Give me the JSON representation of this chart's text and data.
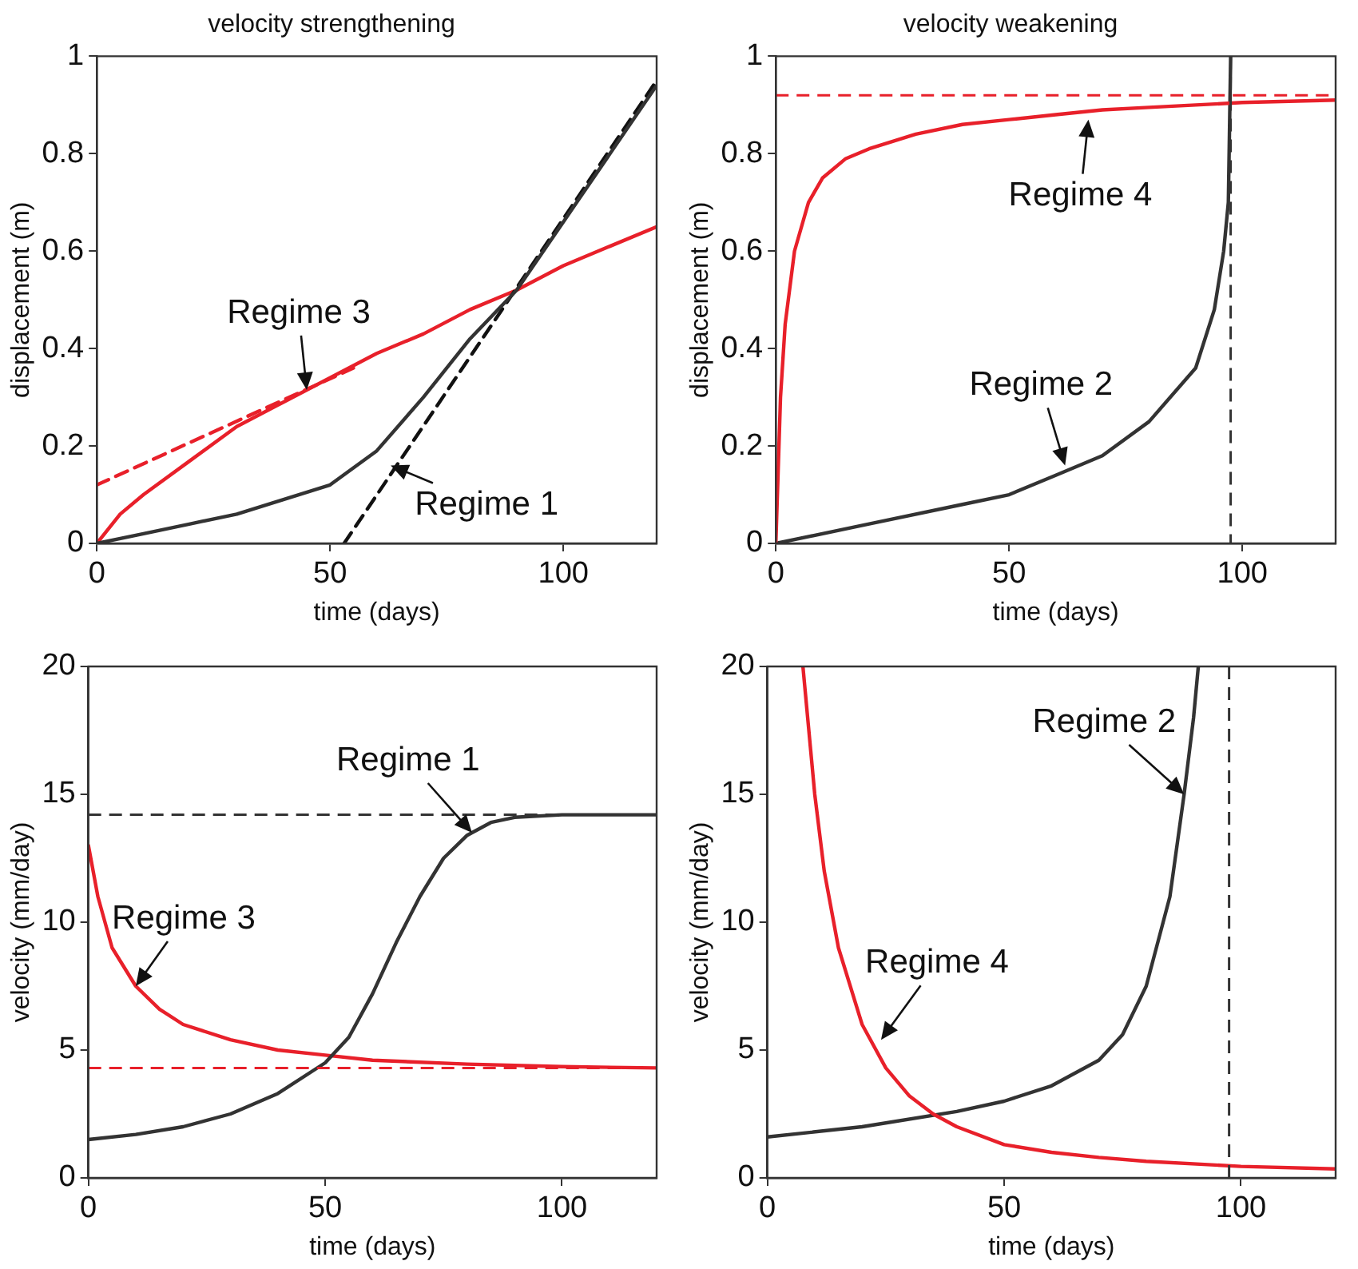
{
  "chart_data": [
    {
      "type": "line",
      "title": "velocity strengthening",
      "xlabel": "time (days)",
      "ylabel": "displacement (m)",
      "xlim": [
        0,
        120
      ],
      "xticks": [
        0,
        50,
        100
      ],
      "ylim": [
        0,
        1
      ],
      "yticks": [
        0,
        0.2,
        0.4,
        0.6,
        0.8,
        1
      ],
      "grid": false,
      "legend": false,
      "marker": "none",
      "series": [
        {
          "color": "#333333",
          "line_style": "solid",
          "x": [
            0,
            10,
            20,
            30,
            40,
            50,
            60,
            70,
            80,
            90,
            100,
            110,
            120
          ],
          "values": [
            0,
            0.02,
            0.04,
            0.06,
            0.09,
            0.12,
            0.19,
            0.3,
            0.42,
            0.52,
            0.66,
            0.8,
            0.94
          ]
        },
        {
          "color": "#111111",
          "line_style": "dashed",
          "x": [
            53,
            120
          ],
          "values": [
            0,
            0.95
          ]
        },
        {
          "color": "#e8202a",
          "line_style": "solid",
          "x": [
            0,
            5,
            10,
            20,
            30,
            40,
            50,
            60,
            70,
            80,
            90,
            100,
            110,
            120
          ],
          "values": [
            0,
            0.06,
            0.1,
            0.17,
            0.24,
            0.29,
            0.34,
            0.39,
            0.43,
            0.48,
            0.52,
            0.57,
            0.61,
            0.65
          ]
        },
        {
          "color": "#e8202a",
          "line_style": "dashed",
          "x": [
            0,
            55
          ],
          "values": [
            0.12,
            0.36
          ]
        }
      ],
      "annotations": [
        {
          "text": "Regime 3",
          "x": 45,
          "y": 0.315
        },
        {
          "text": "Regime 1",
          "x": 63,
          "y": 0.16
        }
      ]
    },
    {
      "type": "line",
      "title": "velocity weakening",
      "xlabel": "time (days)",
      "ylabel": "displacement (m)",
      "xlim": [
        0,
        120
      ],
      "xticks": [
        0,
        50,
        100
      ],
      "ylim": [
        0,
        1
      ],
      "yticks": [
        0,
        0.2,
        0.4,
        0.6,
        0.8,
        1
      ],
      "grid": false,
      "legend": false,
      "marker": "none",
      "series": [
        {
          "color": "#e8202a",
          "line_style": "solid",
          "x": [
            0,
            1,
            2,
            4,
            7,
            10,
            15,
            20,
            30,
            40,
            50,
            60,
            70,
            80,
            90,
            100,
            120
          ],
          "values": [
            0,
            0.3,
            0.45,
            0.6,
            0.7,
            0.75,
            0.79,
            0.81,
            0.84,
            0.86,
            0.87,
            0.88,
            0.89,
            0.895,
            0.9,
            0.905,
            0.91
          ]
        },
        {
          "color": "#333333",
          "line_style": "solid",
          "x": [
            0,
            20,
            40,
            50,
            60,
            70,
            80,
            90,
            94,
            96,
            97,
            97.5
          ],
          "values": [
            0,
            0.04,
            0.08,
            0.1,
            0.14,
            0.18,
            0.25,
            0.36,
            0.48,
            0.6,
            0.7,
            1
          ]
        }
      ],
      "ref_lines": [
        {
          "axis": "y",
          "value": 0.92,
          "color": "#e8202a",
          "line_style": "dashed"
        },
        {
          "axis": "x",
          "value": 97.5,
          "color": "#333333",
          "line_style": "dashed"
        }
      ],
      "annotations": [
        {
          "text": "Regime 4",
          "x": 67,
          "y": 0.87
        },
        {
          "text": "Regime 2",
          "x": 62,
          "y": 0.16
        }
      ]
    },
    {
      "type": "line",
      "xlabel": "time (days)",
      "ylabel": "velocity (mm/day)",
      "xlim": [
        0,
        120
      ],
      "xticks": [
        0,
        50,
        100
      ],
      "ylim": [
        0,
        20
      ],
      "yticks": [
        0,
        5,
        10,
        15,
        20
      ],
      "grid": false,
      "legend": false,
      "marker": "none",
      "series": [
        {
          "color": "#333333",
          "line_style": "solid",
          "x": [
            0,
            10,
            20,
            30,
            40,
            50,
            55,
            60,
            65,
            70,
            75,
            80,
            85,
            90,
            100,
            120
          ],
          "values": [
            1.5,
            1.7,
            2,
            2.5,
            3.3,
            4.5,
            5.5,
            7.2,
            9.2,
            11,
            12.5,
            13.4,
            13.9,
            14.1,
            14.2,
            14.2
          ]
        },
        {
          "color": "#e8202a",
          "line_style": "solid",
          "x": [
            0,
            2,
            5,
            10,
            15,
            20,
            30,
            40,
            50,
            60,
            80,
            100,
            120
          ],
          "values": [
            13,
            11,
            9,
            7.5,
            6.6,
            6,
            5.4,
            5,
            4.8,
            4.6,
            4.45,
            4.35,
            4.3
          ]
        }
      ],
      "ref_lines": [
        {
          "axis": "y",
          "value": 14.2,
          "color": "#333333",
          "line_style": "dashed"
        },
        {
          "axis": "y",
          "value": 4.3,
          "color": "#e8202a",
          "line_style": "dashed"
        }
      ],
      "annotations": [
        {
          "text": "Regime 3",
          "x": 10,
          "y": 7.5
        },
        {
          "text": "Regime 1",
          "x": 81,
          "y": 13.5
        }
      ]
    },
    {
      "type": "line",
      "xlabel": "time (days)",
      "ylabel": "velocity (mm/day)",
      "xlim": [
        0,
        120
      ],
      "xticks": [
        0,
        50,
        100
      ],
      "ylim": [
        0,
        20
      ],
      "yticks": [
        0,
        5,
        10,
        15,
        20
      ],
      "grid": false,
      "legend": false,
      "marker": "none",
      "series": [
        {
          "color": "#e8202a",
          "line_style": "solid",
          "x": [
            7.5,
            10,
            12,
            15,
            20,
            25,
            30,
            35,
            40,
            50,
            60,
            70,
            80,
            100,
            120
          ],
          "values": [
            20,
            15,
            12,
            9,
            6,
            4.3,
            3.2,
            2.5,
            2,
            1.3,
            1,
            0.8,
            0.65,
            0.45,
            0.35
          ]
        },
        {
          "color": "#333333",
          "line_style": "solid",
          "x": [
            0,
            20,
            40,
            50,
            60,
            70,
            75,
            80,
            85,
            88,
            90,
            91
          ],
          "values": [
            1.6,
            2,
            2.6,
            3,
            3.6,
            4.6,
            5.6,
            7.5,
            11,
            15,
            18,
            20
          ]
        }
      ],
      "ref_lines": [
        {
          "axis": "x",
          "value": 97.5,
          "color": "#333333",
          "line_style": "dashed"
        }
      ],
      "annotations": [
        {
          "text": "Regime 2",
          "x": 88,
          "y": 15
        },
        {
          "text": "Regime 4",
          "x": 24,
          "y": 5.4
        }
      ]
    }
  ]
}
